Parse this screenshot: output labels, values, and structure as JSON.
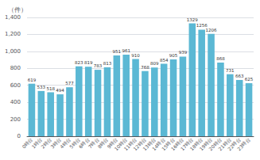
{
  "chart_data": {
    "type": "bar",
    "categories": [
      "0時台",
      "1時台",
      "2時台",
      "3時台",
      "4時台",
      "5時台",
      "6時台",
      "7時台",
      "8時台",
      "9時台",
      "10時台",
      "11時台",
      "12時台",
      "13時台",
      "14時台",
      "15時台",
      "16時台",
      "17時台",
      "18時台",
      "19時台",
      "20時台",
      "21時台",
      "22時台",
      "23時台"
    ],
    "values": [
      619,
      533,
      518,
      494,
      577,
      823,
      819,
      783,
      813,
      951,
      961,
      910,
      768,
      809,
      854,
      905,
      939,
      1329,
      1256,
      1206,
      868,
      731,
      663,
      625
    ],
    "color": "#5bb8d4",
    "ylabel": "（件）",
    "ylim": [
      0,
      1400
    ],
    "yticks": [
      0,
      200,
      400,
      600,
      800,
      {
        "value": 1000,
        "label": "1,000"
      },
      {
        "value": 1200,
        "label": "1,200"
      },
      {
        "value": 1400,
        "label": "1,400"
      }
    ],
    "grid": true,
    "data_labels": true
  }
}
